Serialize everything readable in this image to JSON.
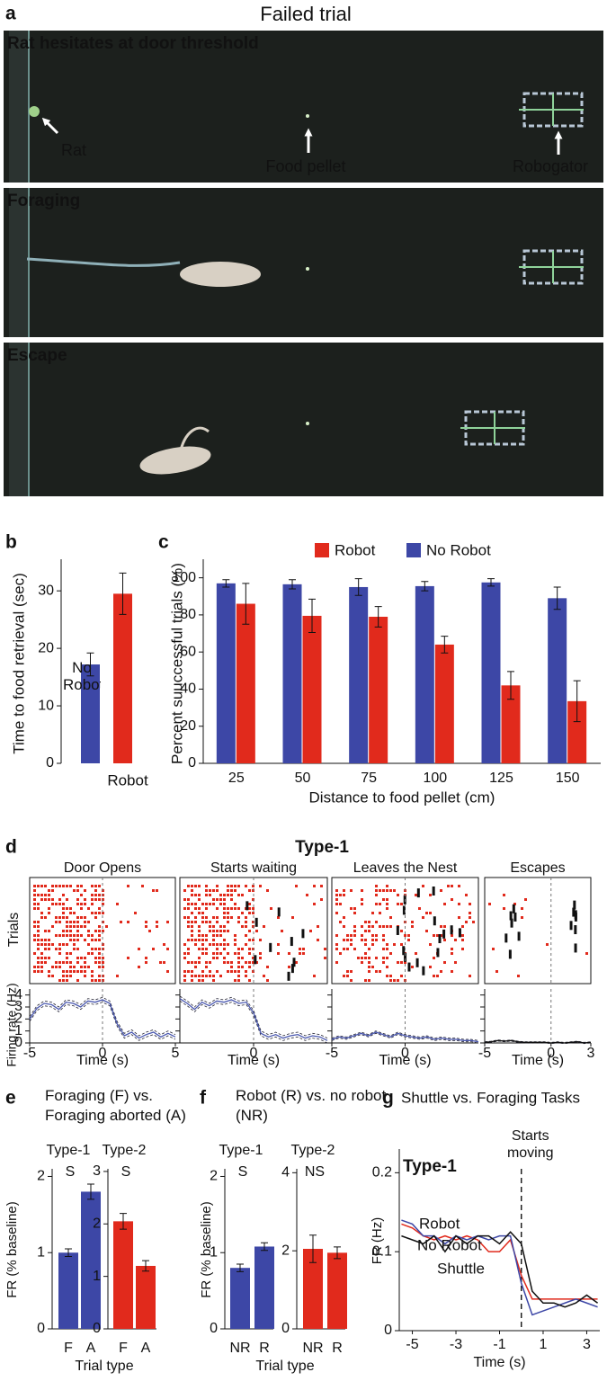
{
  "panel_a": {
    "label": "a",
    "title": "Failed trial",
    "frames": [
      {
        "caption": "Rat hesitates at door threshold",
        "annotations": [
          "Rat",
          "Food pellet",
          "Robogator"
        ]
      },
      {
        "caption": "Foraging"
      },
      {
        "caption": "Escape"
      }
    ]
  },
  "chart_data": [
    {
      "type": "bar",
      "label": "b",
      "ylabel": "Time to food retrieval (sec)",
      "categories": [
        "No Robot",
        "Robot"
      ],
      "values": [
        17.2,
        29.5
      ],
      "errors": [
        2.0,
        3.6
      ],
      "colors": [
        "#3d47a6",
        "#e12a1c"
      ],
      "ylim": [
        0,
        35.5
      ],
      "yticks": [
        0,
        10,
        20,
        30
      ]
    },
    {
      "type": "grouped_bar",
      "label": "c",
      "ylabel": "Percent suuccessful trials (%)",
      "xlabel": "Distance to food pellet (cm)",
      "categories": [
        "25",
        "50",
        "75",
        "100",
        "125",
        "150"
      ],
      "legend": "top",
      "series": [
        {
          "name": "No Robot",
          "color": "#3d47a6",
          "values": [
            97,
            96.5,
            95,
            95.5,
            97.5,
            89
          ],
          "errors": [
            2,
            2.5,
            4.5,
            2.5,
            2,
            6
          ]
        },
        {
          "name": "Robot",
          "color": "#e12a1c",
          "values": [
            86,
            79.5,
            79,
            64,
            42,
            33.5
          ],
          "errors": [
            11,
            9,
            5.5,
            4.5,
            7.5,
            11
          ]
        }
      ],
      "ylim": [
        0,
        110
      ],
      "yticks": [
        0,
        20,
        40,
        60,
        80,
        100
      ]
    },
    {
      "type": "raster_line",
      "label": "d",
      "title": "Type-1",
      "raster_ylabel": "Trials",
      "ylabel": "Firing rate (Hz)",
      "ylim": [
        0,
        4.5
      ],
      "yticks": [
        0,
        1,
        2,
        3,
        4
      ],
      "panels": [
        {
          "title": "Door Opens",
          "xlabel": "Time (s)",
          "xlim": [
            -5,
            5
          ],
          "xticks": [
            -5,
            0,
            5
          ],
          "color": "#4a58b0",
          "error": 0.2,
          "x": [
            -5,
            -4.5,
            -4,
            -3.5,
            -3,
            -2.5,
            -2,
            -1.5,
            -1,
            -0.5,
            0,
            0.5,
            1,
            1.5,
            2,
            2.5,
            3,
            3.5,
            4,
            4.5,
            5
          ],
          "values": [
            2.0,
            2.9,
            3.3,
            3.2,
            2.8,
            3.4,
            3.3,
            3.0,
            3.5,
            3.4,
            3.6,
            3.3,
            1.6,
            0.6,
            0.9,
            0.4,
            0.7,
            0.9,
            0.5,
            0.8,
            0.5
          ]
        },
        {
          "title": "Starts waiting",
          "xlabel": "Time (s)",
          "xlim": [
            -5,
            5
          ],
          "xticks": [
            0
          ],
          "color": "#4a58b0",
          "error": 0.2,
          "x": [
            -5,
            -4.5,
            -4,
            -3.5,
            -3,
            -2.5,
            -2,
            -1.5,
            -1,
            -0.5,
            0,
            0.5,
            1,
            1.5,
            2,
            2.5,
            3,
            3.5,
            4,
            4.5,
            5
          ],
          "values": [
            3.7,
            3.3,
            2.8,
            3.4,
            3.1,
            3.5,
            3.4,
            3.6,
            3.3,
            3.4,
            2.5,
            0.8,
            0.5,
            0.7,
            0.4,
            0.6,
            0.7,
            0.4,
            0.6,
            0.5,
            0.2
          ]
        },
        {
          "title": "Leaves the Nest",
          "xlabel": "Time (s)",
          "xlim": [
            -5,
            5
          ],
          "xticks": [
            -5,
            0
          ],
          "color": "#4a58b0",
          "error": 0.1,
          "x": [
            -5,
            -4.5,
            -4,
            -3.5,
            -3,
            -2.5,
            -2,
            -1.5,
            -1,
            -0.5,
            0,
            0.5,
            1,
            1.5,
            2,
            2.5,
            3,
            3.5,
            4,
            4.5,
            5
          ],
          "values": [
            0.3,
            0.5,
            0.4,
            0.6,
            0.8,
            0.6,
            0.9,
            0.7,
            0.5,
            0.8,
            0.6,
            0.5,
            0.4,
            0.5,
            0.3,
            0.4,
            0.3,
            0.3,
            0.2,
            0.2,
            0.1
          ]
        },
        {
          "title": "Escapes",
          "xlabel": "Time (s)",
          "xlim": [
            -5,
            3
          ],
          "xticks": [
            -5,
            0,
            3
          ],
          "color": "#111111",
          "error": 0.05,
          "x": [
            -5,
            -4.5,
            -4,
            -3.5,
            -3,
            -2.5,
            -2,
            -1.5,
            -1,
            -0.5,
            0,
            0.5,
            1,
            1.5,
            2,
            2.5,
            3
          ],
          "values": [
            0.05,
            0.1,
            0.2,
            0.15,
            0.2,
            0.1,
            0.05,
            0.05,
            0.05,
            0.05,
            0.0,
            0.05,
            0.0,
            0.05,
            0.1,
            0.0,
            0.05
          ]
        }
      ]
    },
    {
      "type": "bar_pair",
      "label": "e",
      "title": "Foraging (F) vs. Foraging aborted (A)",
      "xlabel": "Trial type",
      "ylabel": "FR (% baseline)",
      "panels": [
        {
          "title": "Type-1",
          "significance": "S",
          "categories": [
            "F",
            "A"
          ],
          "values": [
            1.0,
            1.8
          ],
          "errors": [
            0.05,
            0.1
          ],
          "color": "#3d47a6",
          "ylim": [
            0,
            2.1
          ],
          "yticks": [
            0,
            1,
            2
          ]
        },
        {
          "title": "Type-2",
          "significance": "S",
          "categories": [
            "F",
            "A"
          ],
          "values": [
            2.05,
            1.2
          ],
          "errors": [
            0.15,
            0.1
          ],
          "color": "#e12a1c",
          "ylim": [
            0,
            3.05
          ],
          "yticks": [
            0,
            1,
            2,
            3
          ]
        }
      ]
    },
    {
      "type": "bar_pair",
      "label": "f",
      "title": "Robot (R) vs. no robot (NR)",
      "xlabel": "Trial type",
      "ylabel": "FR (% baseline)",
      "panels": [
        {
          "title": "Type-1",
          "significance": "S",
          "categories": [
            "NR",
            "R"
          ],
          "values": [
            0.8,
            1.08
          ],
          "errors": [
            0.05,
            0.05
          ],
          "color": "#3d47a6",
          "ylim": [
            0,
            2.1
          ],
          "yticks": [
            0,
            1,
            2
          ]
        },
        {
          "title": "Type-2",
          "significance": "NS",
          "categories": [
            "NR",
            "R"
          ],
          "values": [
            2.05,
            1.95
          ],
          "errors": [
            0.35,
            0.15
          ],
          "color": "#e12a1c",
          "ylim": [
            0,
            4.1
          ],
          "yticks": [
            0,
            2,
            4
          ]
        }
      ]
    },
    {
      "type": "line",
      "label": "g",
      "title": "Shuttle vs. Foraging Tasks",
      "subtitle": "Type-1",
      "annotation": "Starts moving",
      "xlabel": "Time (s)",
      "ylabel": "FR (Hz)",
      "xlim": [
        -5.6,
        3.6
      ],
      "xticks": [
        -5,
        -3,
        -1,
        1,
        3
      ],
      "ylim": [
        0,
        0.23
      ],
      "yticks": [
        0,
        0.1,
        0.2
      ],
      "x": [
        -5.5,
        -5,
        -4.5,
        -4,
        -3.5,
        -3,
        -2.5,
        -2,
        -1.5,
        -1,
        -0.5,
        0,
        0.5,
        1,
        1.5,
        2,
        2.5,
        3,
        3.5
      ],
      "series": [
        {
          "name": "Robot",
          "color": "#e12a1c",
          "values": [
            0.135,
            0.13,
            0.12,
            0.115,
            0.12,
            0.115,
            0.12,
            0.115,
            0.1,
            0.1,
            0.115,
            0.07,
            0.04,
            0.04,
            0.04,
            0.04,
            0.04,
            0.04,
            0.04
          ]
        },
        {
          "name": "No Robot",
          "color": "#3d47a6",
          "values": [
            0.14,
            0.135,
            0.12,
            0.12,
            0.11,
            0.12,
            0.115,
            0.12,
            0.115,
            0.12,
            0.12,
            0.06,
            0.02,
            0.025,
            0.03,
            0.035,
            0.04,
            0.035,
            0.03
          ]
        },
        {
          "name": "Shuttle",
          "color": "#111111",
          "values": [
            0.12,
            0.115,
            0.11,
            0.12,
            0.1,
            0.12,
            0.11,
            0.12,
            0.12,
            0.11,
            0.125,
            0.11,
            0.05,
            0.035,
            0.035,
            0.03,
            0.035,
            0.045,
            0.035
          ]
        }
      ]
    }
  ]
}
